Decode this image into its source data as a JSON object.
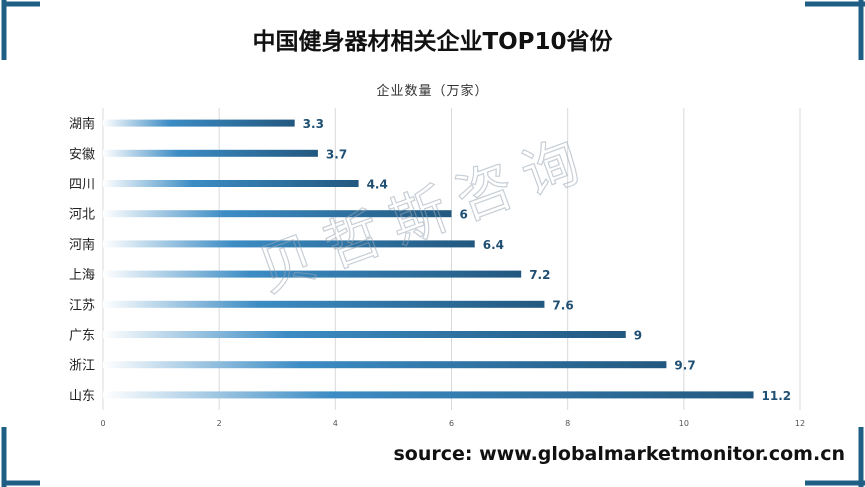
{
  "colors": {
    "frame": "#1f5f86",
    "bar_dark": "#22587f",
    "bar_mid": "#3c8cc4",
    "bar_light": "#ffffff",
    "value_label": "#1f4f73",
    "grid": "#d9d9d9",
    "watermark": "#9aa7b4"
  },
  "header": {
    "title": "中国健身器材相关企业TOP10省份"
  },
  "watermark": {
    "text": "贝哲斯咨询"
  },
  "footer": {
    "source": "source: www.globalmarketmonitor.com.cn"
  },
  "chart_data": {
    "type": "bar",
    "orientation": "horizontal",
    "title": "中国健身器材相关企业TOP10省份",
    "xlabel": "企业数量（万家）",
    "ylabel": "",
    "categories": [
      "湖南",
      "安徽",
      "四川",
      "河北",
      "河南",
      "上海",
      "江苏",
      "广东",
      "浙江",
      "山东"
    ],
    "values": [
      3.3,
      3.7,
      4.4,
      6,
      6.4,
      7.2,
      7.6,
      9,
      9.7,
      11.2
    ],
    "value_labels": [
      "3.3",
      "3.7",
      "4.4",
      "6",
      "6.4",
      "7.2",
      "7.6",
      "9",
      "9.7",
      "11.2"
    ],
    "xlim": [
      0,
      12
    ],
    "xticks": [
      0,
      2,
      4,
      6,
      8,
      10,
      12
    ],
    "grid": true,
    "legend": "none"
  }
}
